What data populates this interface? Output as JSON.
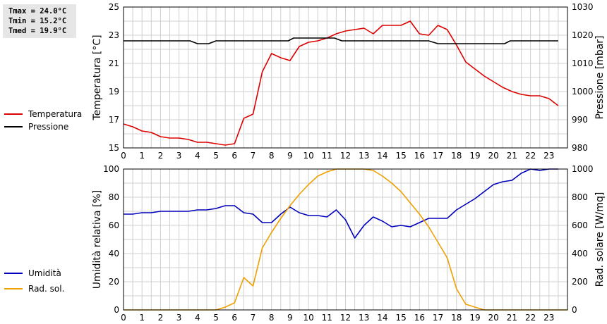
{
  "stats": {
    "tmax": "Tmax = 24.0°C",
    "tmin": "Tmin = 15.2°C",
    "tmed": "Tmed = 19.9°C"
  },
  "colors": {
    "temperature": "#dd0000",
    "pressure": "#000000",
    "humidity": "#0000bb",
    "radiation": "#eea000",
    "grid": "#d0d0d0"
  },
  "chart_data": [
    {
      "type": "line",
      "ylabel_left": "Temperatura [°C]",
      "ylabel_right": "Pressione [mbar]",
      "x_ticks": [
        0,
        1,
        2,
        3,
        4,
        5,
        6,
        7,
        8,
        9,
        10,
        11,
        12,
        13,
        14,
        15,
        16,
        17,
        18,
        19,
        20,
        21,
        22,
        23
      ],
      "xlim": [
        0,
        24
      ],
      "ylim_left": [
        15,
        25
      ],
      "yticks_left": [
        15,
        17,
        19,
        21,
        23,
        25
      ],
      "ylim_right": [
        980,
        1030
      ],
      "yticks_right": [
        980,
        990,
        1000,
        1010,
        1020,
        1030
      ],
      "grid": true,
      "legend_position": "left",
      "series": [
        {
          "name": "Temperatura",
          "axis": "left",
          "color": "#dd0000",
          "x": [
            0,
            0.5,
            1,
            1.5,
            2,
            2.5,
            3,
            3.5,
            4,
            4.5,
            5,
            5.5,
            6,
            6.5,
            7,
            7.5,
            8,
            8.5,
            9,
            9.5,
            10,
            10.5,
            11,
            11.5,
            12,
            12.5,
            13,
            13.5,
            14,
            14.5,
            15,
            15.5,
            16,
            16.5,
            17,
            17.5,
            18,
            18.5,
            19,
            19.5,
            20,
            20.5,
            21,
            21.5,
            22,
            22.5,
            23,
            23.5
          ],
          "y": [
            16.7,
            16.5,
            16.2,
            16.1,
            15.8,
            15.7,
            15.7,
            15.6,
            15.4,
            15.4,
            15.3,
            15.2,
            15.3,
            17.1,
            17.4,
            20.4,
            21.7,
            21.4,
            21.2,
            22.2,
            22.5,
            22.6,
            22.8,
            23.1,
            23.3,
            23.4,
            23.5,
            23.1,
            23.7,
            23.7,
            23.7,
            24.0,
            23.1,
            23.0,
            23.7,
            23.4,
            22.3,
            21.1,
            20.6,
            20.1,
            19.7,
            19.3,
            19.0,
            18.8,
            18.7,
            18.7,
            18.5,
            18.0
          ]
        },
        {
          "name": "Pressione",
          "axis": "right",
          "color": "#000000",
          "x": [
            0,
            3.6,
            4,
            4.6,
            5,
            6,
            7,
            8,
            8.9,
            9.2,
            11.4,
            11.8,
            14,
            15,
            16,
            16.5,
            17,
            17.5,
            18,
            19,
            20,
            20.6,
            20.9,
            22,
            23,
            23.5
          ],
          "y": [
            1018,
            1018,
            1017,
            1017,
            1018,
            1018,
            1018,
            1018,
            1018,
            1019,
            1019,
            1018,
            1018,
            1018,
            1018,
            1018,
            1017,
            1017,
            1017,
            1017,
            1017,
            1017,
            1018,
            1018,
            1018,
            1018
          ]
        }
      ]
    },
    {
      "type": "line",
      "ylabel_left": "Umidità relativa [%]",
      "ylabel_right": "Rad. solare [W/mq]",
      "x_ticks": [
        0,
        1,
        2,
        3,
        4,
        5,
        6,
        7,
        8,
        9,
        10,
        11,
        12,
        13,
        14,
        15,
        16,
        17,
        18,
        19,
        20,
        21,
        22,
        23
      ],
      "xlim": [
        0,
        24
      ],
      "ylim_left": [
        0,
        100
      ],
      "yticks_left": [
        0,
        20,
        40,
        60,
        80,
        100
      ],
      "ylim_right": [
        0,
        1000
      ],
      "yticks_right": [
        0,
        200,
        400,
        600,
        800,
        1000
      ],
      "grid": true,
      "legend_position": "left",
      "series": [
        {
          "name": "Umidità",
          "axis": "left",
          "color": "#0000bb",
          "x": [
            0,
            0.5,
            1,
            1.5,
            2,
            2.5,
            3,
            3.5,
            4,
            4.5,
            5,
            5.5,
            6,
            6.5,
            7,
            7.5,
            8,
            8.5,
            9,
            9.5,
            10,
            10.5,
            11,
            11.5,
            12,
            12.5,
            13,
            13.5,
            14,
            14.5,
            15,
            15.5,
            16,
            16.5,
            17,
            17.5,
            18,
            18.5,
            19,
            19.5,
            20,
            20.5,
            21,
            21.5,
            22,
            22.5,
            23,
            23.5
          ],
          "y": [
            68,
            68,
            69,
            69,
            70,
            70,
            70,
            70,
            71,
            71,
            72,
            74,
            74,
            69,
            68,
            62,
            62,
            68,
            73,
            69,
            67,
            67,
            66,
            71,
            64,
            51,
            60,
            66,
            63,
            59,
            60,
            59,
            62,
            65,
            65,
            65,
            71,
            75,
            79,
            84,
            89,
            91,
            92,
            97,
            100,
            99,
            100,
            100
          ]
        },
        {
          "name": "Rad. sol.",
          "axis": "right",
          "color": "#eea000",
          "x": [
            0,
            1,
            2,
            3,
            4,
            5,
            5.5,
            6,
            6.5,
            7,
            7.5,
            8,
            8.5,
            9,
            9.5,
            10,
            10.5,
            11,
            11.5,
            12,
            12.5,
            13,
            13.5,
            14,
            14.5,
            15,
            15.5,
            16,
            16.5,
            17,
            17.5,
            18,
            18.5,
            19,
            19.5,
            20,
            21,
            22,
            23,
            24
          ],
          "y": [
            0,
            0,
            0,
            0,
            0,
            0,
            20,
            50,
            230,
            170,
            440,
            550,
            650,
            740,
            820,
            890,
            950,
            980,
            1000,
            1010,
            1010,
            1010,
            990,
            950,
            900,
            840,
            760,
            680,
            590,
            480,
            370,
            150,
            40,
            20,
            0,
            0,
            0,
            0,
            0,
            0
          ]
        }
      ]
    }
  ]
}
